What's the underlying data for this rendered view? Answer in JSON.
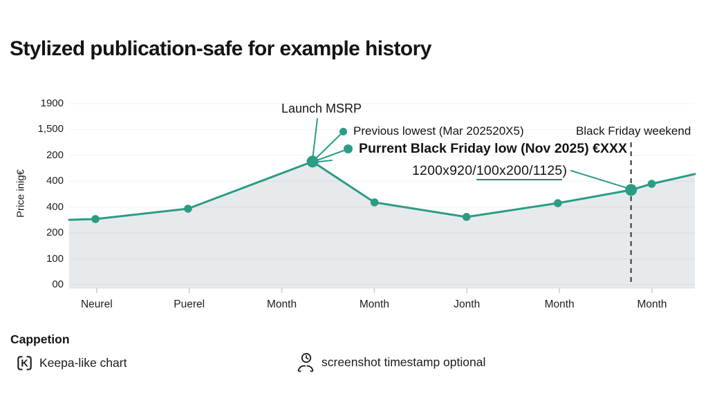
{
  "title": "Stylized publication-safe for example history",
  "colors": {
    "accent": "#2a9c85",
    "underline": "#1e8a72",
    "area_fill": "rgba(144,160,168,0.22)",
    "grid": "rgba(0,0,0,0.055)",
    "dashed_line": "#4f4f4f",
    "tick": "#c9ced1",
    "text": "#161616"
  },
  "chart_data": {
    "type": "line",
    "title": "Stylized publication-safe for example history",
    "ylabel": "Price inig€",
    "xlabel": "",
    "grid": true,
    "legend_position": "none",
    "y_tick_labels": [
      "1900",
      "1,500",
      "200",
      "400",
      "400",
      "200",
      "100",
      "00"
    ],
    "x_labels": [
      "Neurel",
      "Puerel",
      "Month",
      "Month",
      "Jonth",
      "Month",
      "Month"
    ],
    "series": [
      {
        "name": "price-history",
        "color": "#2a9c85",
        "points": [
          {
            "x": 0.0,
            "y": 0.643,
            "dot": false
          },
          {
            "x": 0.042,
            "y": 0.639,
            "dot": true
          },
          {
            "x": 0.19,
            "y": 0.585,
            "dot": true
          },
          {
            "x": 0.389,
            "y": 0.339,
            "dot": true,
            "emphasis": true
          },
          {
            "x": 0.488,
            "y": 0.552,
            "dot": true
          },
          {
            "x": 0.635,
            "y": 0.628,
            "dot": true
          },
          {
            "x": 0.781,
            "y": 0.556,
            "dot": true
          },
          {
            "x": 0.898,
            "y": 0.487,
            "dot": true,
            "emphasis": true
          },
          {
            "x": 0.931,
            "y": 0.455,
            "dot": true
          },
          {
            "x": 1.0,
            "y": 0.404,
            "dot": false
          }
        ]
      }
    ],
    "marker_line": {
      "x": 0.898,
      "style": "dashed",
      "label": "Black Friday weekend"
    },
    "annotations": {
      "launch_msrp": "Launch MSRP",
      "previous_lowest": "Previous lowest (Mar 202520X5)",
      "current_low": "Purrent Black Friday low (Nov 2025) €XXX",
      "size_prefix": "1200x920/",
      "size_underlined": "100x200/1125",
      "size_suffix": ")",
      "marker_label": "Black Friday weekend"
    }
  },
  "caption": {
    "heading": "Cappetion",
    "items": [
      {
        "icon": "keepa-badge-icon",
        "label": "Keepa-like chart"
      },
      {
        "icon": "clock-person-icon",
        "label": "screenshot timestamp optional"
      }
    ]
  }
}
